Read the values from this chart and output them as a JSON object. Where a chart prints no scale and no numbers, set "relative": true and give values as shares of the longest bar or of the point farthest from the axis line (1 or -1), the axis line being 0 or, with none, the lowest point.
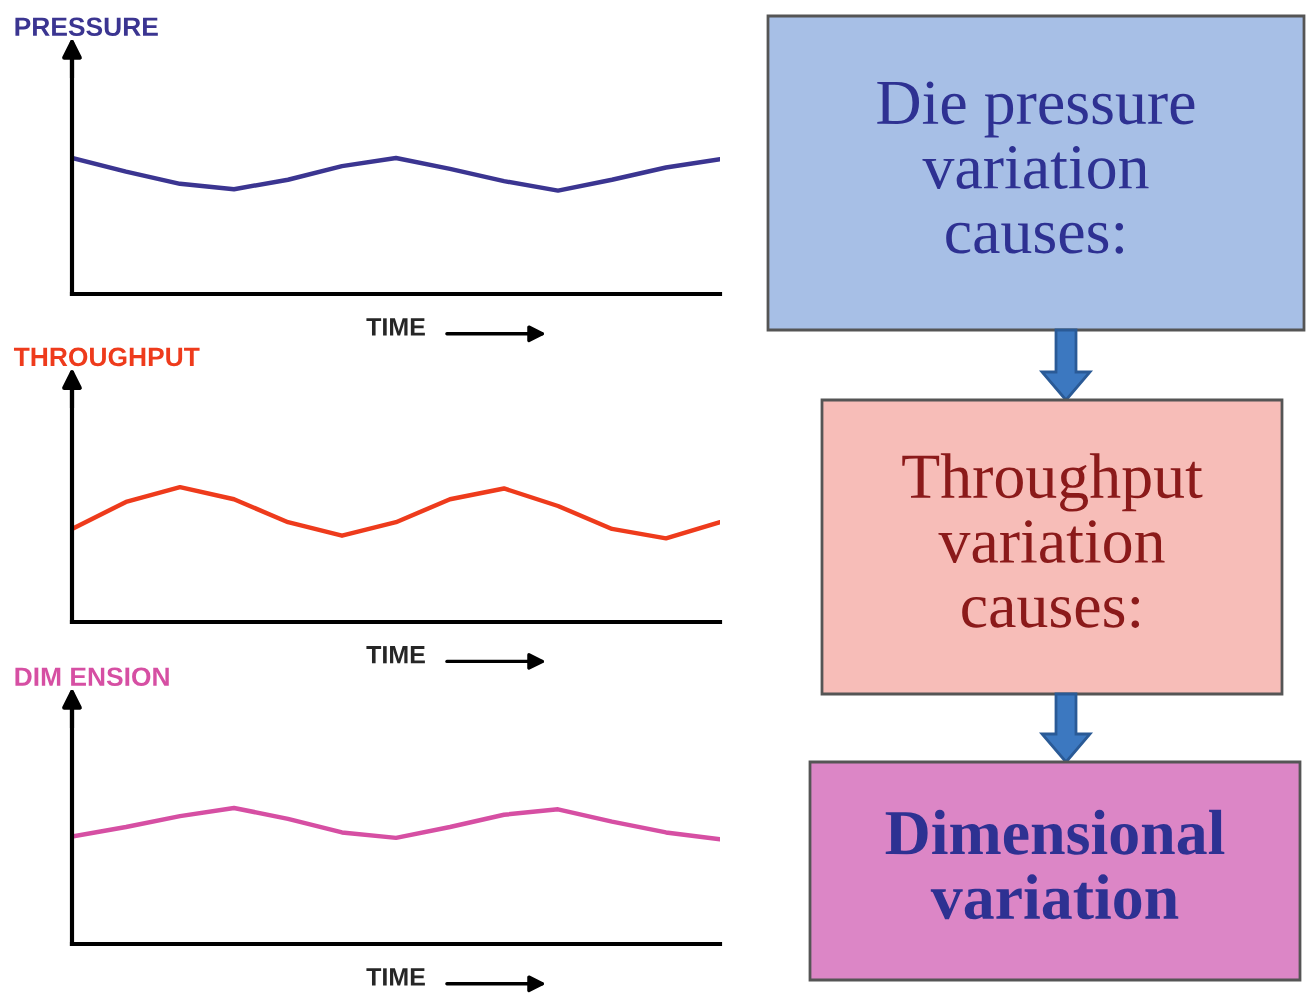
{
  "chart_data": [
    {
      "type": "line",
      "title": "PRESSURE",
      "xlabel": "TIME",
      "relative": true,
      "categories": [
        null,
        null,
        null,
        null,
        null,
        null,
        null,
        null,
        null,
        null,
        null,
        null,
        null
      ],
      "series": [
        {
          "color": "#3b3591",
          "values": [
            1,
            0.9,
            0.81,
            0.77,
            0.84,
            0.94,
            1,
            0.92,
            0.83,
            0.76,
            0.84,
            0.93,
            0.99
          ]
        }
      ]
    },
    {
      "type": "line",
      "title": "THROUGHPUT",
      "xlabel": "TIME",
      "relative": true,
      "categories": [
        null,
        null,
        null,
        null,
        null,
        null,
        null,
        null,
        null,
        null,
        null,
        null,
        null
      ],
      "series": [
        {
          "color": "#ee3b1c",
          "values": [
            0.69,
            0.89,
            1,
            0.91,
            0.74,
            0.64,
            0.74,
            0.91,
            0.99,
            0.86,
            0.69,
            0.62,
            0.74
          ]
        }
      ]
    },
    {
      "type": "line",
      "title": "DIM ENSION",
      "xlabel": "TIME",
      "relative": true,
      "categories": [
        null,
        null,
        null,
        null,
        null,
        null,
        null,
        null,
        null,
        null,
        null,
        null,
        null
      ],
      "series": [
        {
          "color": "#d64fa3",
          "values": [
            0.79,
            0.86,
            0.94,
            1,
            0.92,
            0.82,
            0.78,
            0.86,
            0.95,
            0.99,
            0.9,
            0.82,
            0.77
          ]
        }
      ]
    },
    {
      "type": "other",
      "annotations": [
        "Die pressure variation causes:",
        "Throughput variation causes:",
        "Dimensional variation"
      ],
      "colors": [
        "#a7bfe6",
        "#f7bdb8",
        "#dc86c6"
      ]
    }
  ]
}
